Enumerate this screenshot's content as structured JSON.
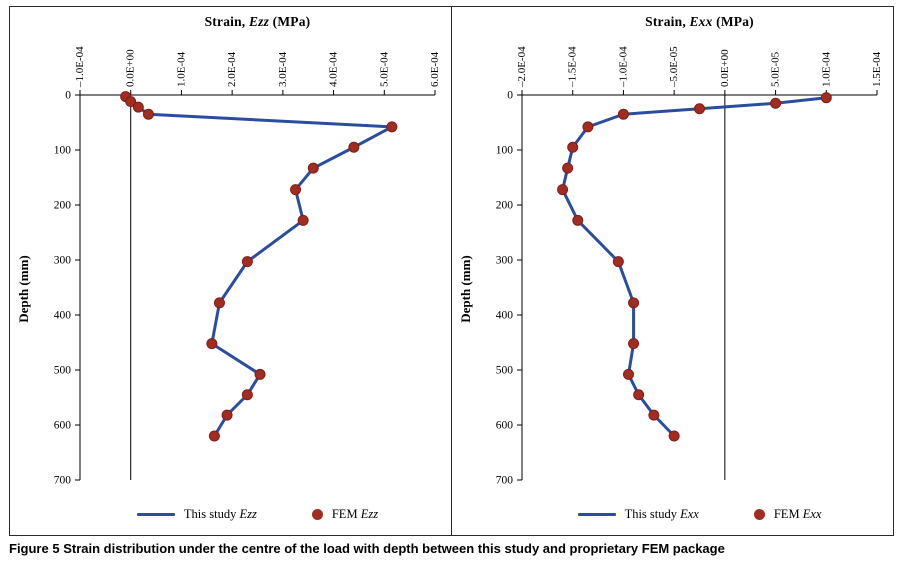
{
  "figure": {
    "caption_label": "Figure 5",
    "caption_text": "Strain distribution under the centre of the load with depth between this study and proprietary FEM package"
  },
  "colors": {
    "line": "#2b4da0",
    "marker": "#a32c20",
    "marker_edge": "#7d1f16",
    "axis": "#000000"
  },
  "chart_data": [
    {
      "type": "line",
      "title": {
        "prefix": "Strain, ",
        "var": "Ezz",
        "suffix": " (MPa)"
      },
      "ylabel": "Depth (mm)",
      "xlim": [
        -0.0001,
        0.0006
      ],
      "ylim": [
        0,
        700
      ],
      "grid": false,
      "zero_line": true,
      "legend_position": "bottom",
      "x_ticks": [
        {
          "v": -0.0001,
          "label": "–1.0E-04"
        },
        {
          "v": 0,
          "label": "0.0E+00"
        },
        {
          "v": 0.0001,
          "label": "1.0E-04"
        },
        {
          "v": 0.0002,
          "label": "2.0E-04"
        },
        {
          "v": 0.0003,
          "label": "3.0E-04"
        },
        {
          "v": 0.0004,
          "label": "4.0E-04"
        },
        {
          "v": 0.0005,
          "label": "5.0E-04"
        },
        {
          "v": 0.0006,
          "label": "6.0E-04"
        }
      ],
      "y_ticks": [
        0,
        100,
        200,
        300,
        400,
        500,
        600,
        700
      ],
      "legend": [
        {
          "marker": "line",
          "prefix": "This study ",
          "var": "Ezz"
        },
        {
          "marker": "dot",
          "prefix": "FEM ",
          "var": "Ezz"
        }
      ],
      "series": [
        {
          "name": "This study Ezz",
          "type": "line",
          "points": [
            [
              -1e-05,
              3
            ],
            [
              0,
              12
            ],
            [
              1.5e-05,
              22
            ],
            [
              3.5e-05,
              35
            ],
            [
              0.000515,
              58
            ],
            [
              0.00044,
              95
            ],
            [
              0.00036,
              133
            ],
            [
              0.000325,
              172
            ],
            [
              0.00034,
              228
            ],
            [
              0.00023,
              303
            ],
            [
              0.000175,
              378
            ],
            [
              0.00016,
              452
            ],
            [
              0.000255,
              508
            ],
            [
              0.00023,
              545
            ],
            [
              0.00019,
              582
            ],
            [
              0.000165,
              620
            ]
          ]
        },
        {
          "name": "FEM Ezz",
          "type": "scatter",
          "points": [
            [
              -1e-05,
              3
            ],
            [
              0,
              12
            ],
            [
              1.5e-05,
              22
            ],
            [
              3.5e-05,
              35
            ],
            [
              0.000515,
              58
            ],
            [
              0.00044,
              95
            ],
            [
              0.00036,
              133
            ],
            [
              0.000325,
              172
            ],
            [
              0.00034,
              228
            ],
            [
              0.00023,
              303
            ],
            [
              0.000175,
              378
            ],
            [
              0.00016,
              452
            ],
            [
              0.000255,
              508
            ],
            [
              0.00023,
              545
            ],
            [
              0.00019,
              582
            ],
            [
              0.000165,
              620
            ]
          ]
        }
      ]
    },
    {
      "type": "line",
      "title": {
        "prefix": "Strain, ",
        "var": "Exx",
        "suffix": " (MPa)"
      },
      "ylabel": "Depth (mm)",
      "xlim": [
        -0.0002,
        0.00015
      ],
      "ylim": [
        0,
        700
      ],
      "grid": false,
      "zero_line": true,
      "legend_position": "bottom",
      "x_ticks": [
        {
          "v": -0.0002,
          "label": "–2.0E-04"
        },
        {
          "v": -0.00015,
          "label": "–1.5E-04"
        },
        {
          "v": -0.0001,
          "label": "–1.0E-04"
        },
        {
          "v": -5e-05,
          "label": "–5.0E-05"
        },
        {
          "v": 0,
          "label": "0.0E+00"
        },
        {
          "v": 5e-05,
          "label": "5.0E-05"
        },
        {
          "v": 0.0001,
          "label": "1.0E-04"
        },
        {
          "v": 0.00015,
          "label": "1.5E-04"
        }
      ],
      "y_ticks": [
        0,
        100,
        200,
        300,
        400,
        500,
        600,
        700
      ],
      "legend": [
        {
          "marker": "line",
          "prefix": "This study ",
          "var": "Exx"
        },
        {
          "marker": "dot",
          "prefix": "FEM ",
          "var": "Exx"
        }
      ],
      "series": [
        {
          "name": "This study Exx",
          "type": "line",
          "points": [
            [
              0.0001,
              5
            ],
            [
              5e-05,
              15
            ],
            [
              -2.5e-05,
              25
            ],
            [
              -0.0001,
              35
            ],
            [
              -0.000135,
              58
            ],
            [
              -0.00015,
              95
            ],
            [
              -0.000155,
              133
            ],
            [
              -0.00016,
              172
            ],
            [
              -0.000145,
              228
            ],
            [
              -0.000105,
              303
            ],
            [
              -9e-05,
              378
            ],
            [
              -9e-05,
              452
            ],
            [
              -9.5e-05,
              508
            ],
            [
              -8.5e-05,
              545
            ],
            [
              -7e-05,
              582
            ],
            [
              -5e-05,
              620
            ]
          ]
        },
        {
          "name": "FEM Exx",
          "type": "scatter",
          "points": [
            [
              0.0001,
              5
            ],
            [
              5e-05,
              15
            ],
            [
              -2.5e-05,
              25
            ],
            [
              -0.0001,
              35
            ],
            [
              -0.000135,
              58
            ],
            [
              -0.00015,
              95
            ],
            [
              -0.000155,
              133
            ],
            [
              -0.00016,
              172
            ],
            [
              -0.000145,
              228
            ],
            [
              -0.000105,
              303
            ],
            [
              -9e-05,
              378
            ],
            [
              -9e-05,
              452
            ],
            [
              -9.5e-05,
              508
            ],
            [
              -8.5e-05,
              545
            ],
            [
              -7e-05,
              582
            ],
            [
              -5e-05,
              620
            ]
          ]
        }
      ]
    }
  ]
}
